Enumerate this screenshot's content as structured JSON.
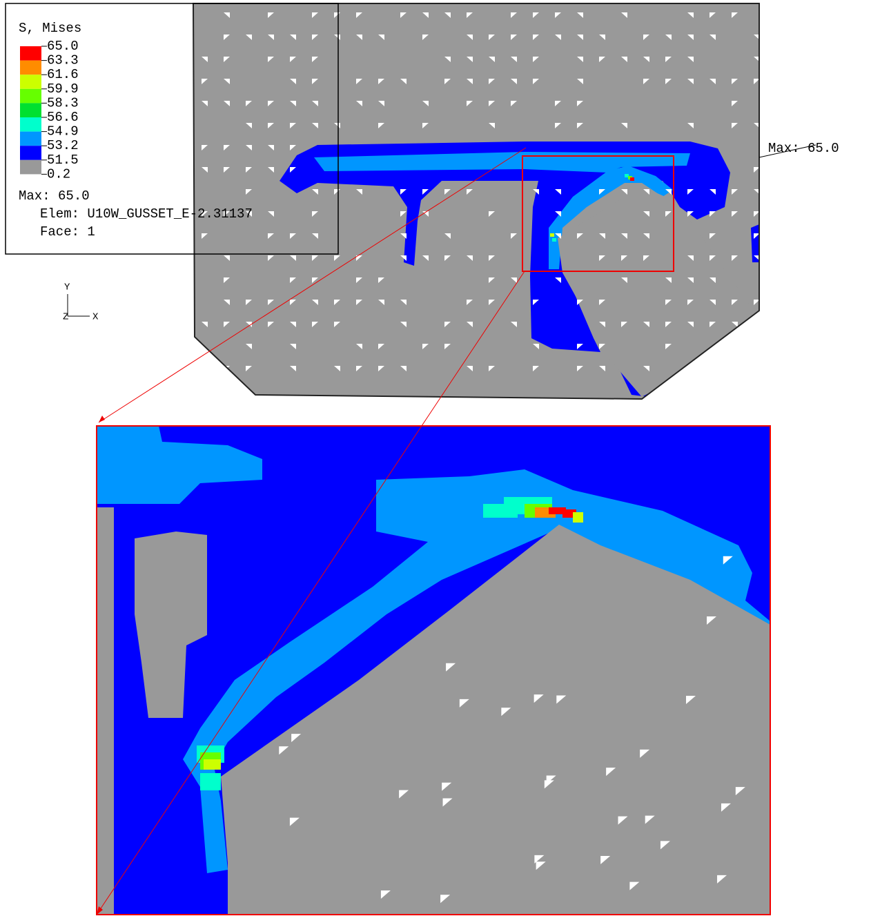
{
  "legend": {
    "title": "S, Mises",
    "labels": [
      "65.0",
      "63.3",
      "61.6",
      "59.9",
      "58.3",
      "56.6",
      "54.9",
      "53.2",
      "51.5",
      "0.2"
    ],
    "colors": [
      "#ff0000",
      "#ff8c00",
      "#ccff00",
      "#66ff00",
      "#00e030",
      "#00ffcc",
      "#0096ff",
      "#0000ff",
      "#999999"
    ]
  },
  "info": {
    "max": "Max: 65.0",
    "elem": "Elem: U10W_GUSSET_E-2.31137",
    "face": "Face: 1"
  },
  "triad": {
    "y": "Y",
    "z": "Z",
    "x": "X"
  },
  "annotation": "Max: 65.0"
}
